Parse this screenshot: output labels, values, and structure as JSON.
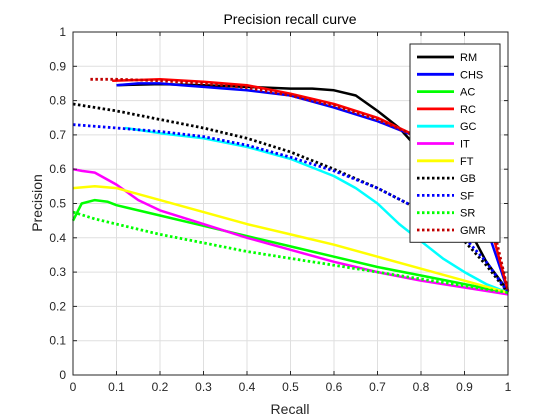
{
  "chart_data": {
    "type": "line",
    "title": "Precision recall curve",
    "xlabel": "Recall",
    "ylabel": "Precision",
    "xlim": [
      0,
      1
    ],
    "ylim": [
      0,
      1
    ],
    "xticks": [
      "0",
      "0.1",
      "0.2",
      "0.3",
      "0.4",
      "0.5",
      "0.6",
      "0.7",
      "0.8",
      "0.9",
      "1"
    ],
    "yticks": [
      "0",
      "0.1",
      "0.2",
      "0.3",
      "0.4",
      "0.5",
      "0.6",
      "0.7",
      "0.8",
      "0.9",
      "1"
    ],
    "grid": true,
    "legend_position": "top-right",
    "series": [
      {
        "name": "RM",
        "color": "#000000",
        "dash": "solid",
        "x": [
          0.1,
          0.2,
          0.3,
          0.4,
          0.5,
          0.55,
          0.6,
          0.65,
          0.7,
          0.75,
          0.8,
          0.85,
          0.9,
          0.95,
          1.0
        ],
        "y": [
          0.845,
          0.848,
          0.845,
          0.84,
          0.835,
          0.835,
          0.83,
          0.815,
          0.77,
          0.72,
          0.65,
          0.56,
          0.45,
          0.33,
          0.245
        ]
      },
      {
        "name": "CHS",
        "color": "#0000ff",
        "dash": "solid",
        "x": [
          0.1,
          0.15,
          0.2,
          0.25,
          0.3,
          0.35,
          0.4,
          0.5,
          0.6,
          0.7,
          0.75,
          0.8,
          0.9,
          1.0
        ],
        "y": [
          0.845,
          0.85,
          0.85,
          0.845,
          0.84,
          0.835,
          0.83,
          0.815,
          0.78,
          0.74,
          0.715,
          0.69,
          0.62,
          0.245
        ]
      },
      {
        "name": "AC",
        "color": "#00ff00",
        "dash": "solid",
        "x": [
          0.0,
          0.02,
          0.05,
          0.08,
          0.1,
          0.2,
          0.3,
          0.4,
          0.5,
          0.6,
          0.7,
          0.8,
          0.9,
          1.0
        ],
        "y": [
          0.45,
          0.5,
          0.51,
          0.505,
          0.495,
          0.465,
          0.435,
          0.405,
          0.375,
          0.345,
          0.315,
          0.29,
          0.265,
          0.24
        ]
      },
      {
        "name": "RC",
        "color": "#ff0000",
        "dash": "solid",
        "x": [
          0.09,
          0.15,
          0.2,
          0.3,
          0.4,
          0.5,
          0.6,
          0.7,
          0.75,
          0.8,
          0.85,
          0.9,
          0.95,
          1.0
        ],
        "y": [
          0.858,
          0.86,
          0.862,
          0.855,
          0.845,
          0.82,
          0.79,
          0.75,
          0.72,
          0.69,
          0.65,
          0.58,
          0.48,
          0.245
        ]
      },
      {
        "name": "GC",
        "color": "#00ffff",
        "dash": "solid",
        "x": [
          0.12,
          0.2,
          0.3,
          0.4,
          0.5,
          0.6,
          0.65,
          0.7,
          0.75,
          0.8,
          0.85,
          0.9,
          0.95,
          1.0
        ],
        "y": [
          0.72,
          0.705,
          0.69,
          0.665,
          0.63,
          0.58,
          0.545,
          0.5,
          0.44,
          0.39,
          0.34,
          0.3,
          0.265,
          0.24
        ]
      },
      {
        "name": "IT",
        "color": "#ff00ff",
        "dash": "solid",
        "x": [
          0.0,
          0.02,
          0.05,
          0.1,
          0.15,
          0.2,
          0.3,
          0.4,
          0.5,
          0.6,
          0.7,
          0.8,
          0.9,
          1.0
        ],
        "y": [
          0.6,
          0.595,
          0.59,
          0.555,
          0.51,
          0.48,
          0.44,
          0.4,
          0.365,
          0.33,
          0.3,
          0.275,
          0.255,
          0.235
        ]
      },
      {
        "name": "FT",
        "color": "#ffff00",
        "dash": "solid",
        "x": [
          0.0,
          0.05,
          0.1,
          0.2,
          0.3,
          0.4,
          0.5,
          0.6,
          0.7,
          0.8,
          0.9,
          1.0
        ],
        "y": [
          0.545,
          0.55,
          0.545,
          0.51,
          0.475,
          0.44,
          0.41,
          0.38,
          0.345,
          0.31,
          0.275,
          0.24
        ]
      },
      {
        "name": "GB",
        "color": "#000000",
        "dash": "dotted",
        "x": [
          0.0,
          0.1,
          0.2,
          0.3,
          0.4,
          0.5,
          0.6,
          0.7,
          0.8,
          0.85,
          0.9,
          0.95,
          1.0
        ],
        "y": [
          0.79,
          0.77,
          0.745,
          0.72,
          0.69,
          0.65,
          0.6,
          0.545,
          0.48,
          0.44,
          0.39,
          0.32,
          0.24
        ]
      },
      {
        "name": "SF",
        "color": "#0000ff",
        "dash": "dotted",
        "x": [
          0.0,
          0.1,
          0.2,
          0.3,
          0.4,
          0.5,
          0.6,
          0.7,
          0.8,
          0.9,
          0.95,
          1.0
        ],
        "y": [
          0.73,
          0.72,
          0.71,
          0.695,
          0.67,
          0.635,
          0.595,
          0.545,
          0.48,
          0.4,
          0.33,
          0.24
        ]
      },
      {
        "name": "SR",
        "color": "#00ff00",
        "dash": "dotted",
        "x": [
          0.0,
          0.05,
          0.1,
          0.2,
          0.3,
          0.4,
          0.5,
          0.6,
          0.7,
          0.8,
          0.9,
          1.0
        ],
        "y": [
          0.475,
          0.455,
          0.44,
          0.41,
          0.385,
          0.36,
          0.34,
          0.32,
          0.3,
          0.28,
          0.26,
          0.24
        ]
      },
      {
        "name": "GMR",
        "color": "#c00000",
        "dash": "dotted",
        "x": [
          0.04,
          0.1,
          0.2,
          0.3,
          0.4,
          0.5,
          0.6,
          0.7,
          0.8,
          0.9,
          0.95,
          1.0
        ],
        "y": [
          0.862,
          0.862,
          0.858,
          0.85,
          0.838,
          0.815,
          0.785,
          0.745,
          0.69,
          0.61,
          0.52,
          0.245
        ]
      }
    ]
  }
}
